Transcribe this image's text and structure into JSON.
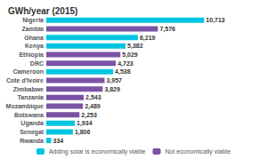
{
  "chart_data": {
    "type": "bar",
    "orientation": "horizontal",
    "title": "GWh/year (2015)",
    "categories": [
      "Nigeria",
      "Zambia",
      "Ghana",
      "Kenya",
      "Ethiopia",
      "DRC",
      "Cameroon",
      "Cote d'Ivoire",
      "Zimbabwe",
      "Tanzania",
      "Mozambique",
      "Botswana",
      "Uganda",
      "Senegal",
      "Rwanda"
    ],
    "series": [
      {
        "name": "Adding solar is economically viable",
        "color": "#00c5e0",
        "values": [
          10713,
          null,
          6219,
          5382,
          null,
          null,
          4538,
          null,
          null,
          null,
          null,
          null,
          1934,
          1806,
          334
        ],
        "value_labels": [
          "10,713",
          null,
          "6,219",
          "5,382",
          null,
          null,
          "4,538",
          null,
          null,
          null,
          null,
          null,
          "1,934",
          "1,806",
          "334"
        ]
      },
      {
        "name": "Not economically viable",
        "color": "#7b52a6",
        "values": [
          null,
          7576,
          null,
          null,
          5029,
          4723,
          null,
          3957,
          3829,
          2543,
          2489,
          2253,
          null,
          null,
          null
        ],
        "value_labels": [
          null,
          "7,576",
          null,
          null,
          "5,029",
          "4,723",
          null,
          "3,957",
          "3,829",
          "2,543",
          "2,489",
          "2,253",
          null,
          null,
          null
        ]
      }
    ],
    "xlim": [
      0,
      14500
    ],
    "data_labels": true,
    "tick_labels": "y",
    "grid": false,
    "legend": "bottom"
  }
}
